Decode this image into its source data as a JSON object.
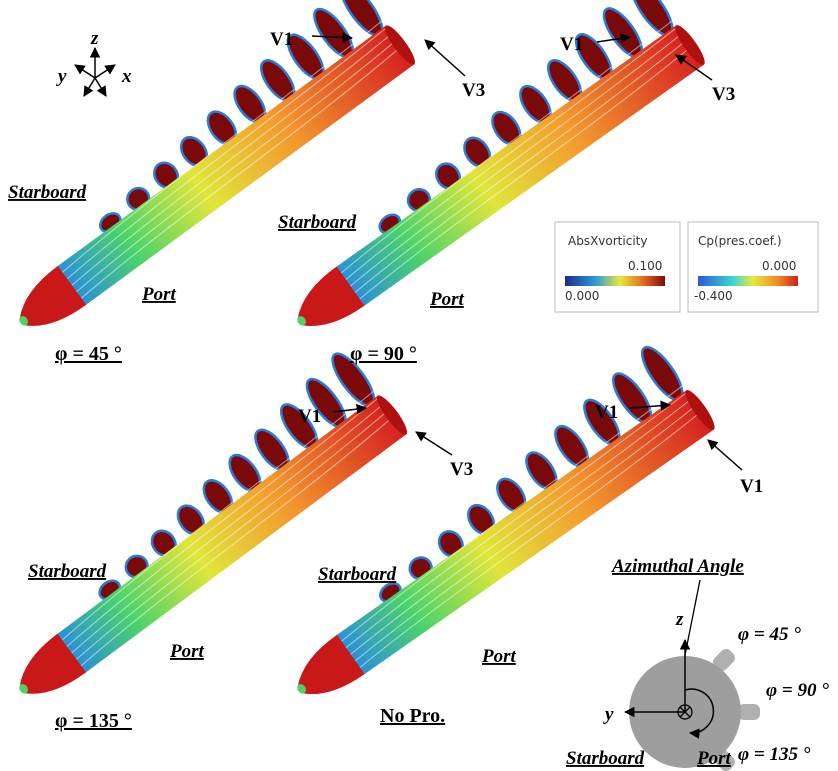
{
  "axes": {
    "z": "z",
    "y": "y",
    "x": "x"
  },
  "panels": [
    {
      "vortex_labels": [
        "V1",
        "V3"
      ],
      "starboard": "Starboard",
      "port": "Port",
      "caption": "φ = 45 °"
    },
    {
      "vortex_labels": [
        "V1",
        "V3"
      ],
      "starboard": "Starboard",
      "port": "Port",
      "caption": "φ = 90 °"
    },
    {
      "vortex_labels": [
        "V1",
        "V3"
      ],
      "starboard": "Starboard",
      "port": "Port",
      "caption": "φ = 135 °"
    },
    {
      "vortex_labels": [
        "V1",
        "V1"
      ],
      "starboard": "Starboard",
      "port": "Port",
      "caption": "No Pro."
    }
  ],
  "legends": [
    {
      "title": "AbsXvorticity",
      "max": "0.100",
      "min": "0.000"
    },
    {
      "title": "Cp(pres.coef.)",
      "max": "0.000",
      "min": "-0.400"
    }
  ],
  "inset": {
    "title": "Azimuthal Angle",
    "z": "z",
    "y": "y",
    "angles": [
      "φ = 45 °",
      "φ = 90 °",
      "φ = 135 °"
    ],
    "starboard": "Starboard",
    "port": "Port"
  }
}
